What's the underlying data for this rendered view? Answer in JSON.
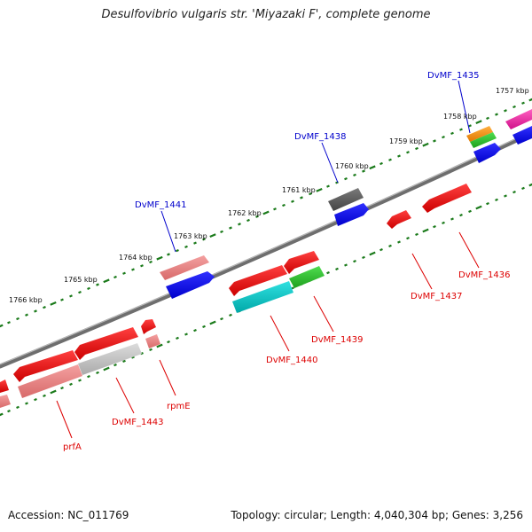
{
  "title": "Desulfovibrio vulgaris str. 'Miyazaki F', complete genome",
  "footer": {
    "accession": "Accession: NC_011769",
    "topology": "Topology: circular; Length: 4,040,304 bp; Genes: 3,256"
  },
  "ticks": [
    "1757 kbp",
    "1758 kbp",
    "1759 kbp",
    "1760 kbp",
    "1761 kbp",
    "1762 kbp",
    "1763 kbp",
    "1764 kbp",
    "1765 kbp",
    "1766 kbp"
  ],
  "genes": [
    {
      "label": "DvMF_1435",
      "color": "#0000cc"
    },
    {
      "label": "DvMF_1436",
      "color": "#dd0000"
    },
    {
      "label": "DvMF_1437",
      "color": "#dd0000"
    },
    {
      "label": "DvMF_1438",
      "color": "#0000cc"
    },
    {
      "label": "DvMF_1439",
      "color": "#dd0000"
    },
    {
      "label": "DvMF_1440",
      "color": "#dd0000"
    },
    {
      "label": "DvMF_1441",
      "color": "#0000cc"
    },
    {
      "label": "rpmE",
      "color": "#dd0000"
    },
    {
      "label": "DvMF_1443",
      "color": "#dd0000"
    },
    {
      "label": "prfA",
      "color": "#dd0000"
    }
  ],
  "colors": {
    "backbone": "#808080",
    "tick_marks": "#1a7a1a",
    "forward_label": "#0000cc",
    "reverse_label": "#dd0000"
  }
}
